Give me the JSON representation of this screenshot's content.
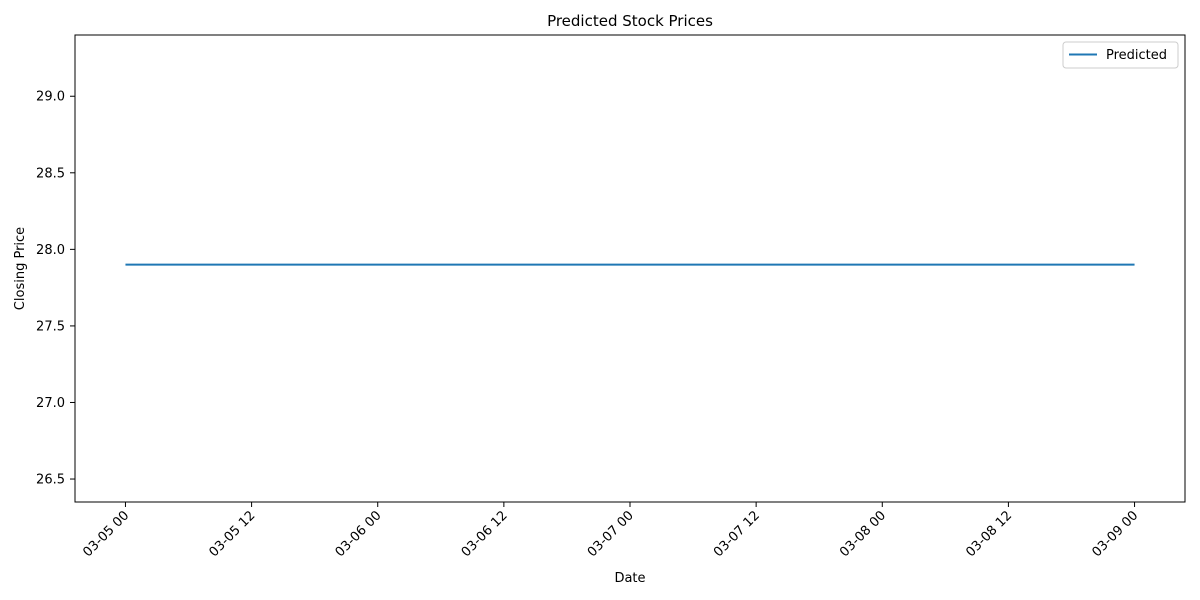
{
  "chart_data": {
    "type": "line",
    "title": "Predicted Stock Prices",
    "xlabel": "Date",
    "ylabel": "Closing Price",
    "x_ticks": [
      "03-05 00",
      "03-05 12",
      "03-06 00",
      "03-06 12",
      "03-07 00",
      "03-07 12",
      "03-08 00",
      "03-08 12",
      "03-09 00"
    ],
    "y_ticks": [
      "26.5",
      "27.0",
      "27.5",
      "28.0",
      "28.5",
      "29.0"
    ],
    "ylim": [
      26.35,
      29.4
    ],
    "xlim_hours": [
      -4.8,
      100.8
    ],
    "series": [
      {
        "name": "Predicted",
        "color": "#1f77b4",
        "x": [
          "2024-03-05",
          "2024-03-06",
          "2024-03-07",
          "2024-03-08",
          "2024-03-09"
        ],
        "values": [
          27.9,
          27.9,
          27.9,
          27.9,
          27.9
        ]
      }
    ],
    "legend": "top-right",
    "grid": false
  }
}
